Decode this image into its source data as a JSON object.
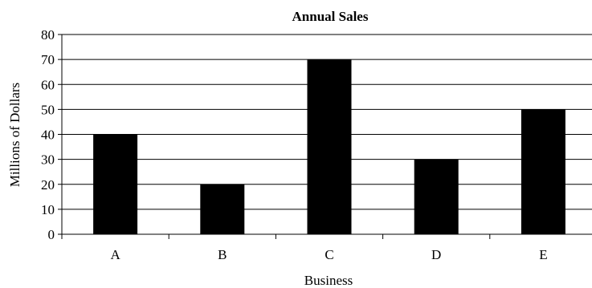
{
  "chart_data": {
    "type": "bar",
    "title": "Annual Sales",
    "xlabel": "Business",
    "ylabel": "Millions of Dollars",
    "categories": [
      "A",
      "B",
      "C",
      "D",
      "E"
    ],
    "values": [
      40,
      20,
      70,
      30,
      50
    ],
    "ylim": [
      0,
      80
    ],
    "yticks": [
      0,
      10,
      20,
      30,
      40,
      50,
      60,
      70,
      80
    ],
    "grid": "horizontal",
    "legend": "none",
    "bar_color": "#000000"
  }
}
